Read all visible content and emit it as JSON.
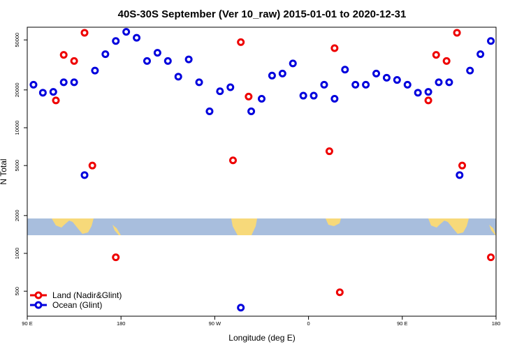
{
  "chart_data": {
    "type": "scatter",
    "title": "40S-30S September (Ver 10_raw)   2015-01-01 to 2020-12-31",
    "xlabel": "Longitude (deg E)",
    "ylabel": "N Total",
    "xlim": [
      90,
      540
    ],
    "ylim_log10": [
      2.5,
      4.8
    ],
    "y_scale": "log",
    "x_ticks": [
      {
        "value": 90,
        "label": "90 E"
      },
      {
        "value": 180,
        "label": "180"
      },
      {
        "value": 270,
        "label": "90 W"
      },
      {
        "value": 360,
        "label": "0"
      },
      {
        "value": 450,
        "label": "90 E"
      },
      {
        "value": 540,
        "label": "180"
      }
    ],
    "y_ticks": [
      {
        "value": 500,
        "label": "500"
      },
      {
        "value": 1000,
        "label": "1000"
      },
      {
        "value": 2000,
        "label": "2000"
      },
      {
        "value": 5000,
        "label": "5000"
      },
      {
        "value": 10000,
        "label": "10000"
      },
      {
        "value": 20000,
        "label": "20000"
      },
      {
        "value": 50000,
        "label": "50000"
      }
    ],
    "legend_position": "bottom-left",
    "map_band": {
      "y_low": 1420,
      "y_high": 1990,
      "ocean_color": "#a8bedd",
      "land_color": "#f7d97a"
    },
    "series": [
      {
        "name": "Land (Nadir&Glint)",
        "color": "#ee0000",
        "points": [
          {
            "x": 117.5,
            "y": 16500
          },
          {
            "x": 125,
            "y": 38000
          },
          {
            "x": 135,
            "y": 34000
          },
          {
            "x": 145,
            "y": 57000
          },
          {
            "x": 152.5,
            "y": 5000
          },
          {
            "x": 175,
            "y": 930
          },
          {
            "x": 287.5,
            "y": 5500
          },
          {
            "x": 295,
            "y": 48000
          },
          {
            "x": 302.5,
            "y": 17700
          },
          {
            "x": 380,
            "y": 6500
          },
          {
            "x": 385,
            "y": 43000
          },
          {
            "x": 390,
            "y": 490
          },
          {
            "x": 475,
            "y": 16500
          },
          {
            "x": 482.5,
            "y": 38000
          },
          {
            "x": 492.5,
            "y": 34000
          },
          {
            "x": 502.5,
            "y": 57000
          },
          {
            "x": 507.5,
            "y": 5000
          },
          {
            "x": 535,
            "y": 930
          }
        ]
      },
      {
        "name": "Ocean (Glint)",
        "color": "#0000dd",
        "points": [
          {
            "x": 96,
            "y": 22000
          },
          {
            "x": 105,
            "y": 19000
          },
          {
            "x": 115,
            "y": 19300
          },
          {
            "x": 125,
            "y": 23000
          },
          {
            "x": 135,
            "y": 23000
          },
          {
            "x": 145,
            "y": 4200
          },
          {
            "x": 155,
            "y": 28500
          },
          {
            "x": 165,
            "y": 38500
          },
          {
            "x": 175,
            "y": 49000
          },
          {
            "x": 185,
            "y": 58000
          },
          {
            "x": 195,
            "y": 52000
          },
          {
            "x": 205,
            "y": 34000
          },
          {
            "x": 215,
            "y": 39500
          },
          {
            "x": 225,
            "y": 34000
          },
          {
            "x": 235,
            "y": 25500
          },
          {
            "x": 245,
            "y": 35000
          },
          {
            "x": 255,
            "y": 23000
          },
          {
            "x": 265,
            "y": 13500
          },
          {
            "x": 275,
            "y": 19500
          },
          {
            "x": 285,
            "y": 21000
          },
          {
            "x": 295,
            "y": 370
          },
          {
            "x": 305,
            "y": 13500
          },
          {
            "x": 315,
            "y": 17000
          },
          {
            "x": 325,
            "y": 26000
          },
          {
            "x": 335,
            "y": 27000
          },
          {
            "x": 345,
            "y": 32500
          },
          {
            "x": 355,
            "y": 18000
          },
          {
            "x": 365,
            "y": 18000
          },
          {
            "x": 375,
            "y": 22000
          },
          {
            "x": 385,
            "y": 17000
          },
          {
            "x": 395,
            "y": 29000
          },
          {
            "x": 405,
            "y": 22000
          },
          {
            "x": 415,
            "y": 22000
          },
          {
            "x": 425,
            "y": 27000
          },
          {
            "x": 435,
            "y": 25000
          },
          {
            "x": 445,
            "y": 24000
          },
          {
            "x": 455,
            "y": 22000
          },
          {
            "x": 465,
            "y": 19000
          },
          {
            "x": 475,
            "y": 19300
          },
          {
            "x": 485,
            "y": 23000
          },
          {
            "x": 495,
            "y": 23000
          },
          {
            "x": 505,
            "y": 4200
          },
          {
            "x": 515,
            "y": 28500
          },
          {
            "x": 525,
            "y": 38500
          },
          {
            "x": 535,
            "y": 49000
          }
        ]
      }
    ]
  }
}
